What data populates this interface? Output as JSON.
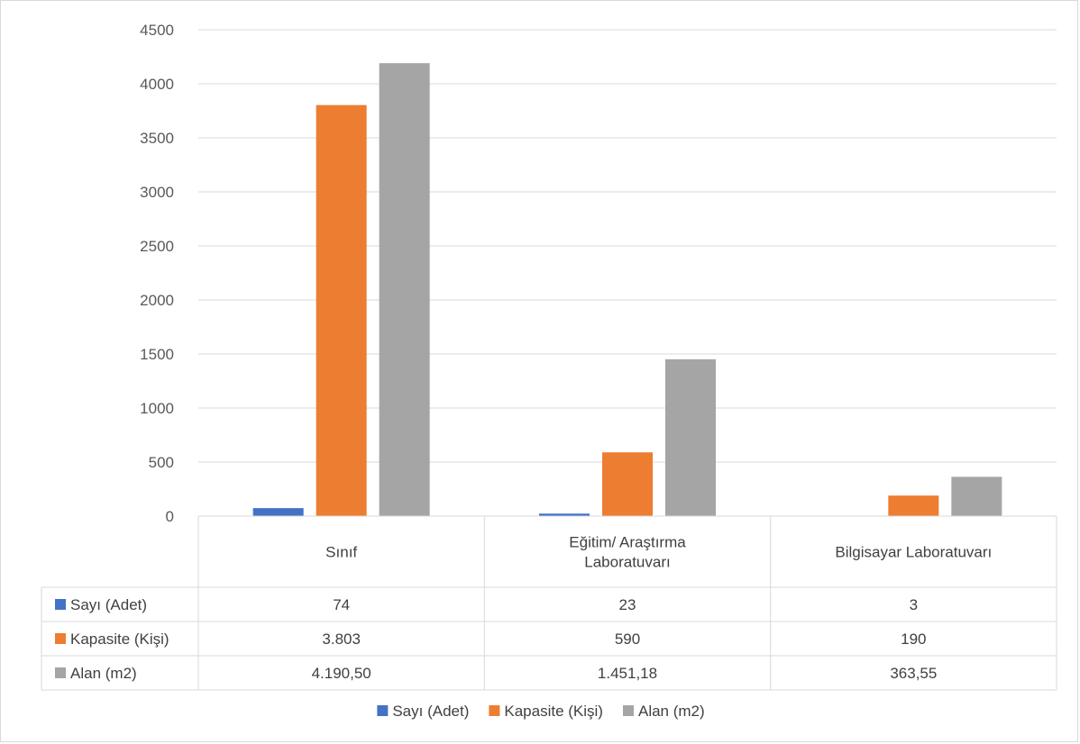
{
  "chart_data": {
    "type": "bar",
    "categories": [
      "Sınıf",
      "Eğitim/ Araştırma Laboratuvarı",
      "Bilgisayar Laboratuvarı"
    ],
    "category_lines": [
      [
        "Sınıf"
      ],
      [
        "Eğitim/ Araştırma",
        "Laboratuvarı"
      ],
      [
        "Bilgisayar Laboratuvarı"
      ]
    ],
    "series": [
      {
        "name": "Sayı (Adet)",
        "values": [
          74,
          23,
          3
        ],
        "labels": [
          "74",
          "23",
          "3"
        ],
        "color": "#4472c4"
      },
      {
        "name": "Kapasite (Kişi)",
        "values": [
          3803,
          590,
          190
        ],
        "labels": [
          "3.803",
          "590",
          "190"
        ],
        "color": "#ed7d31"
      },
      {
        "name": "Alan (m2)",
        "values": [
          4190.5,
          1451.18,
          363.55
        ],
        "labels": [
          "4.190,50",
          "1.451,18",
          "363,55"
        ],
        "color": "#a5a5a5"
      }
    ],
    "yticks": [
      0,
      500,
      1000,
      1500,
      2000,
      2500,
      3000,
      3500,
      4000,
      4500
    ],
    "ylim": [
      0,
      4500
    ],
    "grid": true,
    "legend": "bottom",
    "data_table": true,
    "title": "",
    "xlabel": "",
    "ylabel": ""
  }
}
